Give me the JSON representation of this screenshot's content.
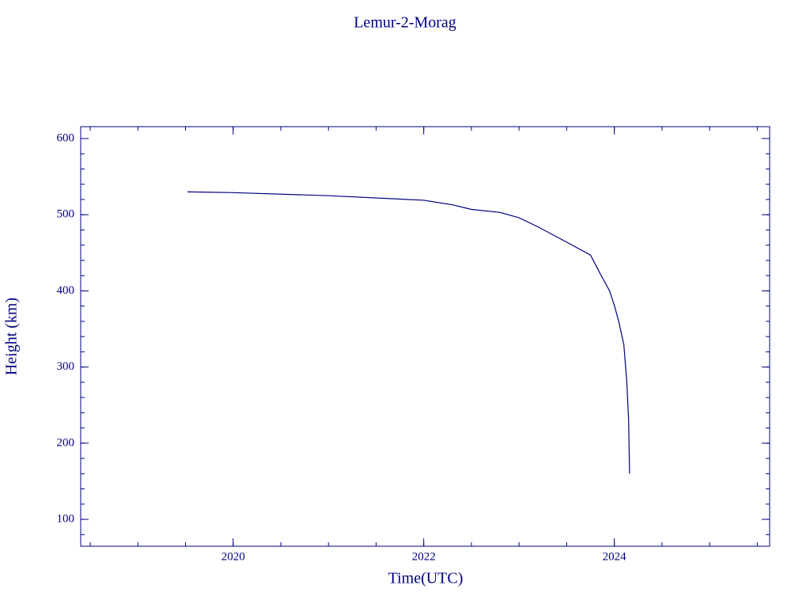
{
  "chart_data": {
    "type": "line",
    "title": "Lemur-2-Morag",
    "x_label": "Time(UTC)",
    "y_label": "Height (km)",
    "color": "#000080",
    "x": [
      2019.52,
      2020.0,
      2021.0,
      2022.0,
      2022.3,
      2022.5,
      2022.8,
      2023.0,
      2023.2,
      2023.5,
      2023.75,
      2023.85,
      2023.95,
      2024.0,
      2024.05,
      2024.1,
      2024.13,
      2024.15,
      2024.16
    ],
    "values": [
      530,
      529,
      525,
      519,
      513,
      507,
      503,
      496,
      484,
      464,
      447,
      423,
      400,
      381,
      358,
      329,
      282,
      230,
      160
    ],
    "xlim": [
      2018.4,
      2025.63
    ],
    "xticks": [
      2020,
      2022,
      2024
    ],
    "x_minor_step": 0.5,
    "ylim": [
      64.7,
      615.6
    ],
    "yticks": [
      100,
      200,
      300,
      400,
      500,
      600
    ],
    "y_minor_step": 20
  }
}
